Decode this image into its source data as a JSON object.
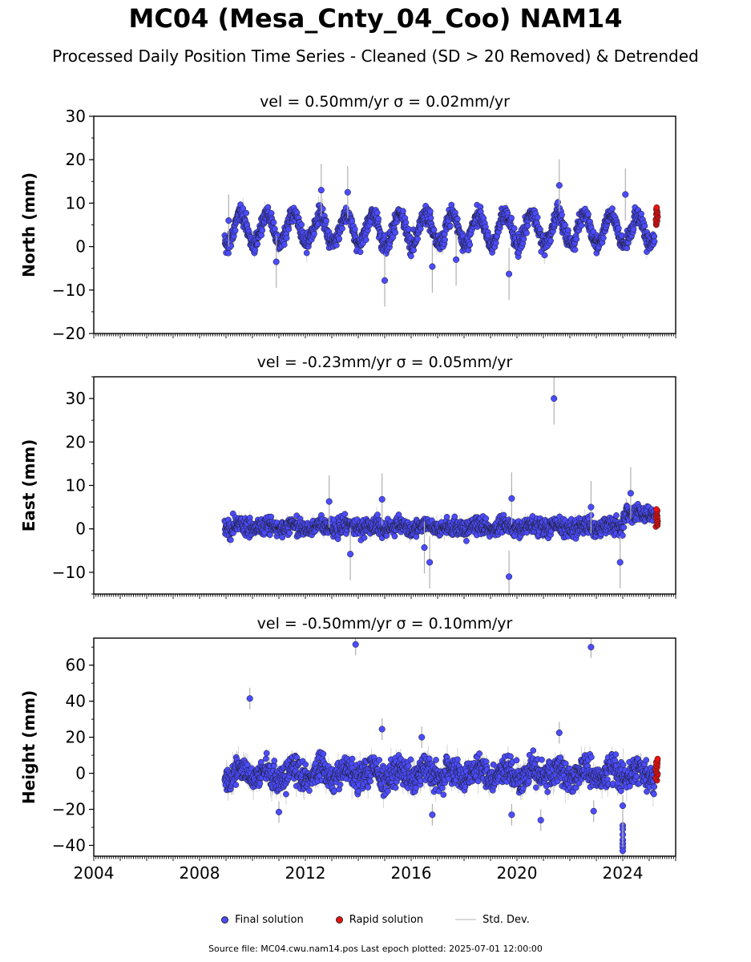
{
  "title": "MC04 (Mesa_Cnty_04_Coo) NAM14",
  "subtitle": "Processed Daily Position Time Series - Cleaned (SD > 20 Removed) & Detrended",
  "legend": {
    "final": "Final solution",
    "rapid": "Rapid solution",
    "std": "Std. Dev."
  },
  "footer": "Source file: MC04.cwu.nam14.pos  Last epoch plotted: 2025-07-01 12:00:00",
  "colors": {
    "final": "#4b4bff",
    "rapid": "#ee1111",
    "std": "#b0b0b0"
  },
  "chart_data": [
    {
      "type": "scatter",
      "component": "north",
      "title": "vel = 0.50mm/yr   σ = 0.02mm/yr",
      "ylabel": "North (mm)",
      "xlim": [
        2004,
        2026
      ],
      "ylim": [
        -20,
        30
      ],
      "yticks": [
        -20,
        -10,
        0,
        10,
        20,
        30
      ],
      "xticks": [
        2004,
        2008,
        2012,
        2016,
        2020,
        2024
      ],
      "start": 2008.95,
      "end": 2025.2,
      "seasonal_amplitude": 3.5,
      "mean": 4,
      "noise": 1.5,
      "outliers": [
        [
          2009.1,
          6
        ],
        [
          2010.9,
          -3.5
        ],
        [
          2012.6,
          13
        ],
        [
          2013.6,
          12.5
        ],
        [
          2015.0,
          -7.8
        ],
        [
          2016.8,
          -4.6
        ],
        [
          2017.7,
          -3
        ],
        [
          2019.7,
          -6.3
        ],
        [
          2021.6,
          14.1
        ],
        [
          2024.1,
          12
        ]
      ],
      "rapid": {
        "start": 2025.25,
        "end": 2025.5,
        "min": 5,
        "max": 9
      }
    },
    {
      "type": "scatter",
      "component": "east",
      "title": "vel = -0.23mm/yr   σ = 0.05mm/yr",
      "ylabel": "East (mm)",
      "xlim": [
        2004,
        2026
      ],
      "ylim": [
        -15,
        35
      ],
      "yticks": [
        -10,
        0,
        10,
        20,
        30
      ],
      "xticks": [
        2004,
        2008,
        2012,
        2016,
        2020,
        2024
      ],
      "start": 2008.95,
      "end": 2025.2,
      "seasonal_amplitude": 0.5,
      "mean": 0.5,
      "noise": 1.4,
      "step": {
        "at": 2024.0,
        "value": 3
      },
      "outliers": [
        [
          2012.9,
          6.3
        ],
        [
          2013.7,
          -5.8
        ],
        [
          2014.9,
          6.8
        ],
        [
          2016.5,
          -4.3
        ],
        [
          2016.7,
          -7.7
        ],
        [
          2019.7,
          -11
        ],
        [
          2019.8,
          7
        ],
        [
          2021.4,
          30
        ],
        [
          2022.8,
          5
        ],
        [
          2023.9,
          -7.7
        ],
        [
          2024.3,
          8.2
        ]
      ],
      "rapid": {
        "start": 2025.25,
        "end": 2025.5,
        "min": 0.5,
        "max": 4.5
      }
    },
    {
      "type": "scatter",
      "component": "height",
      "title": "vel = -0.50mm/yr   σ = 0.10mm/yr",
      "ylabel": "Height (mm)",
      "xlim": [
        2004,
        2026
      ],
      "ylim": [
        -46,
        75
      ],
      "yticks": [
        -40,
        -20,
        0,
        20,
        40,
        60
      ],
      "xticks": [
        2004,
        2008,
        2012,
        2016,
        2020,
        2024
      ],
      "start": 2008.95,
      "end": 2025.2,
      "seasonal_amplitude": 3,
      "mean": 0,
      "noise": 5.5,
      "outliers": [
        [
          2009.9,
          41.5
        ],
        [
          2013.9,
          71.5
        ],
        [
          2011.0,
          -21.5
        ],
        [
          2014.9,
          24.5
        ],
        [
          2016.4,
          20
        ],
        [
          2016.8,
          -23
        ],
        [
          2019.8,
          -23
        ],
        [
          2020.9,
          -26
        ],
        [
          2021.6,
          22.5
        ],
        [
          2022.8,
          70
        ],
        [
          2022.9,
          -21
        ],
        [
          2024.0,
          -29
        ],
        [
          2024.0,
          -31
        ],
        [
          2024.0,
          -34
        ],
        [
          2024.0,
          -37
        ],
        [
          2024.0,
          -39
        ],
        [
          2024.0,
          -41
        ],
        [
          2024.0,
          -43
        ],
        [
          2024.0,
          -18
        ]
      ],
      "rapid": {
        "start": 2025.25,
        "end": 2025.5,
        "min": -4,
        "max": 8
      }
    }
  ]
}
